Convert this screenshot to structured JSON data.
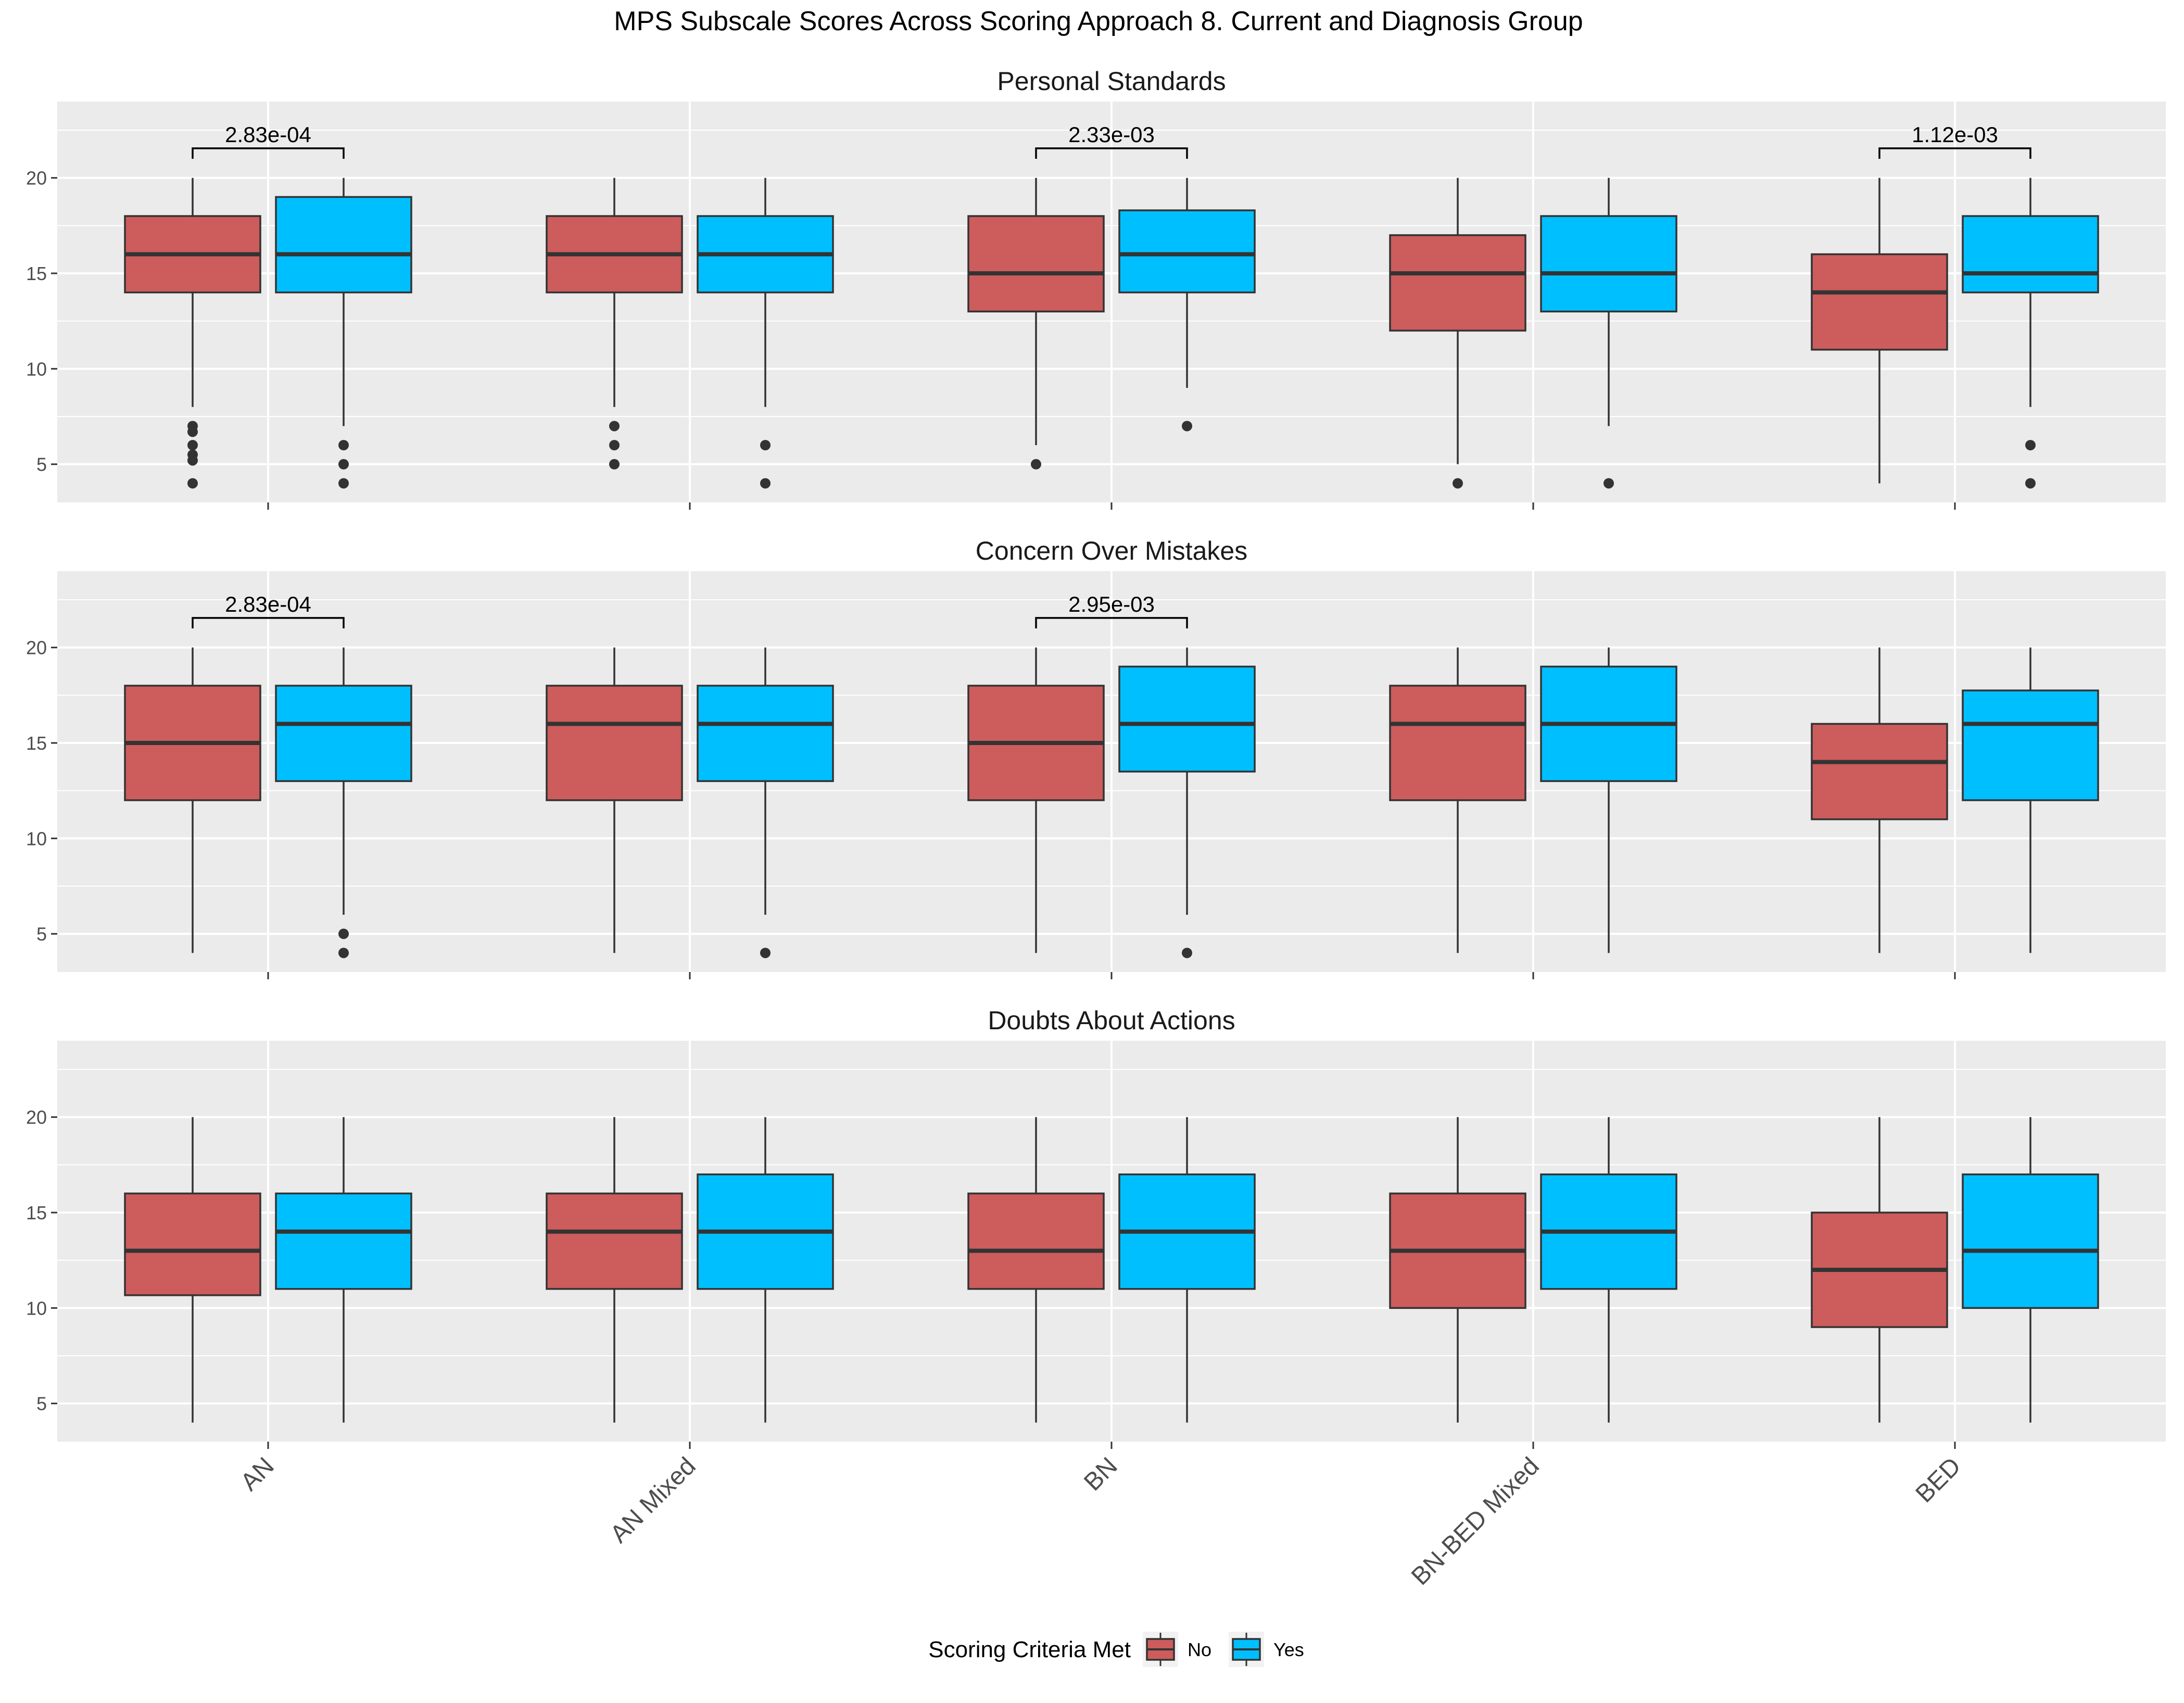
{
  "chart_data": {
    "type": "boxplot",
    "title": "MPS Subscale Scores Across Scoring Approach 8. Current and Diagnosis Group",
    "categories": [
      "AN",
      "AN Mixed",
      "BN",
      "BN-BED Mixed",
      "BED"
    ],
    "ylim": [
      3,
      24
    ],
    "yticks": [
      5,
      10,
      15,
      20
    ],
    "grid": true,
    "legend": {
      "title": "Scoring Criteria Met",
      "position": "bottom",
      "items": [
        {
          "label": "No",
          "color": "#CD5C5C"
        },
        {
          "label": "Yes",
          "color": "#00BFFF"
        }
      ]
    },
    "series_colors": {
      "No": "#CD5C5C",
      "Yes": "#00BFFF"
    },
    "panels": [
      {
        "title": "Personal Standards",
        "boxes": [
          {
            "category": "AN",
            "group": "No",
            "min": 8,
            "q1": 14,
            "median": 16,
            "q3": 18,
            "max": 20,
            "outliers": [
              7,
              6.7,
              6,
              5.5,
              5.2,
              4
            ]
          },
          {
            "category": "AN",
            "group": "Yes",
            "min": 7,
            "q1": 14,
            "median": 16,
            "q3": 19,
            "max": 20,
            "outliers": [
              6,
              5,
              4
            ]
          },
          {
            "category": "AN Mixed",
            "group": "No",
            "min": 8,
            "q1": 14,
            "median": 16,
            "q3": 18,
            "max": 20,
            "outliers": [
              7,
              6,
              5
            ]
          },
          {
            "category": "AN Mixed",
            "group": "Yes",
            "min": 8,
            "q1": 14,
            "median": 16,
            "q3": 18,
            "max": 20,
            "outliers": [
              6,
              4
            ]
          },
          {
            "category": "BN",
            "group": "No",
            "min": 6,
            "q1": 13,
            "median": 15,
            "q3": 18,
            "max": 20,
            "outliers": [
              5
            ]
          },
          {
            "category": "BN",
            "group": "Yes",
            "min": 9,
            "q1": 14,
            "median": 16,
            "q3": 18.3,
            "max": 20,
            "outliers": [
              7
            ]
          },
          {
            "category": "BN-BED Mixed",
            "group": "No",
            "min": 5,
            "q1": 12,
            "median": 15,
            "q3": 17,
            "max": 20,
            "outliers": [
              4
            ]
          },
          {
            "category": "BN-BED Mixed",
            "group": "Yes",
            "min": 7,
            "q1": 13,
            "median": 15,
            "q3": 18,
            "max": 20,
            "outliers": [
              4
            ]
          },
          {
            "category": "BED",
            "group": "No",
            "min": 4,
            "q1": 11,
            "median": 14,
            "q3": 16,
            "max": 20,
            "outliers": []
          },
          {
            "category": "BED",
            "group": "Yes",
            "min": 8,
            "q1": 14,
            "median": 15,
            "q3": 18,
            "max": 20,
            "outliers": [
              6,
              4
            ]
          }
        ],
        "annotations": [
          {
            "category": "AN",
            "label": "2.83e-04"
          },
          {
            "category": "BN",
            "label": "2.33e-03"
          },
          {
            "category": "BED",
            "label": "1.12e-03"
          }
        ]
      },
      {
        "title": "Concern Over Mistakes",
        "boxes": [
          {
            "category": "AN",
            "group": "No",
            "min": 4,
            "q1": 12,
            "median": 15,
            "q3": 18,
            "max": 20,
            "outliers": []
          },
          {
            "category": "AN",
            "group": "Yes",
            "min": 6,
            "q1": 13,
            "median": 16,
            "q3": 18,
            "max": 20,
            "outliers": [
              5,
              4
            ]
          },
          {
            "category": "AN Mixed",
            "group": "No",
            "min": 4,
            "q1": 12,
            "median": 16,
            "q3": 18,
            "max": 20,
            "outliers": []
          },
          {
            "category": "AN Mixed",
            "group": "Yes",
            "min": 6,
            "q1": 13,
            "median": 16,
            "q3": 18,
            "max": 20,
            "outliers": [
              4
            ]
          },
          {
            "category": "BN",
            "group": "No",
            "min": 4,
            "q1": 12,
            "median": 15,
            "q3": 18,
            "max": 20,
            "outliers": []
          },
          {
            "category": "BN",
            "group": "Yes",
            "min": 6,
            "q1": 13.5,
            "median": 16,
            "q3": 19,
            "max": 20,
            "outliers": [
              4
            ]
          },
          {
            "category": "BN-BED Mixed",
            "group": "No",
            "min": 4,
            "q1": 12,
            "median": 16,
            "q3": 18,
            "max": 20,
            "outliers": []
          },
          {
            "category": "BN-BED Mixed",
            "group": "Yes",
            "min": 4,
            "q1": 13,
            "median": 16,
            "q3": 19,
            "max": 20,
            "outliers": []
          },
          {
            "category": "BED",
            "group": "No",
            "min": 4,
            "q1": 11,
            "median": 14,
            "q3": 16,
            "max": 20,
            "outliers": []
          },
          {
            "category": "BED",
            "group": "Yes",
            "min": 4,
            "q1": 12,
            "median": 16,
            "q3": 17.75,
            "max": 20,
            "outliers": []
          }
        ],
        "annotations": [
          {
            "category": "AN",
            "label": "2.83e-04"
          },
          {
            "category": "BN",
            "label": "2.95e-03"
          }
        ]
      },
      {
        "title": "Doubts About Actions",
        "boxes": [
          {
            "category": "AN",
            "group": "No",
            "min": 4,
            "q1": 10.67,
            "median": 13,
            "q3": 16,
            "max": 20,
            "outliers": []
          },
          {
            "category": "AN",
            "group": "Yes",
            "min": 4,
            "q1": 11,
            "median": 14,
            "q3": 16,
            "max": 20,
            "outliers": []
          },
          {
            "category": "AN Mixed",
            "group": "No",
            "min": 4,
            "q1": 11,
            "median": 14,
            "q3": 16,
            "max": 20,
            "outliers": []
          },
          {
            "category": "AN Mixed",
            "group": "Yes",
            "min": 4,
            "q1": 11,
            "median": 14,
            "q3": 17,
            "max": 20,
            "outliers": []
          },
          {
            "category": "BN",
            "group": "No",
            "min": 4,
            "q1": 11,
            "median": 13,
            "q3": 16,
            "max": 20,
            "outliers": []
          },
          {
            "category": "BN",
            "group": "Yes",
            "min": 4,
            "q1": 11,
            "median": 14,
            "q3": 17,
            "max": 20,
            "outliers": []
          },
          {
            "category": "BN-BED Mixed",
            "group": "No",
            "min": 4,
            "q1": 10,
            "median": 13,
            "q3": 16,
            "max": 20,
            "outliers": []
          },
          {
            "category": "BN-BED Mixed",
            "group": "Yes",
            "min": 4,
            "q1": 11,
            "median": 14,
            "q3": 17,
            "max": 20,
            "outliers": []
          },
          {
            "category": "BED",
            "group": "No",
            "min": 4,
            "q1": 9,
            "median": 12,
            "q3": 15,
            "max": 20,
            "outliers": []
          },
          {
            "category": "BED",
            "group": "Yes",
            "min": 4,
            "q1": 10,
            "median": 13,
            "q3": 17,
            "max": 20,
            "outliers": []
          }
        ],
        "annotations": []
      }
    ]
  }
}
